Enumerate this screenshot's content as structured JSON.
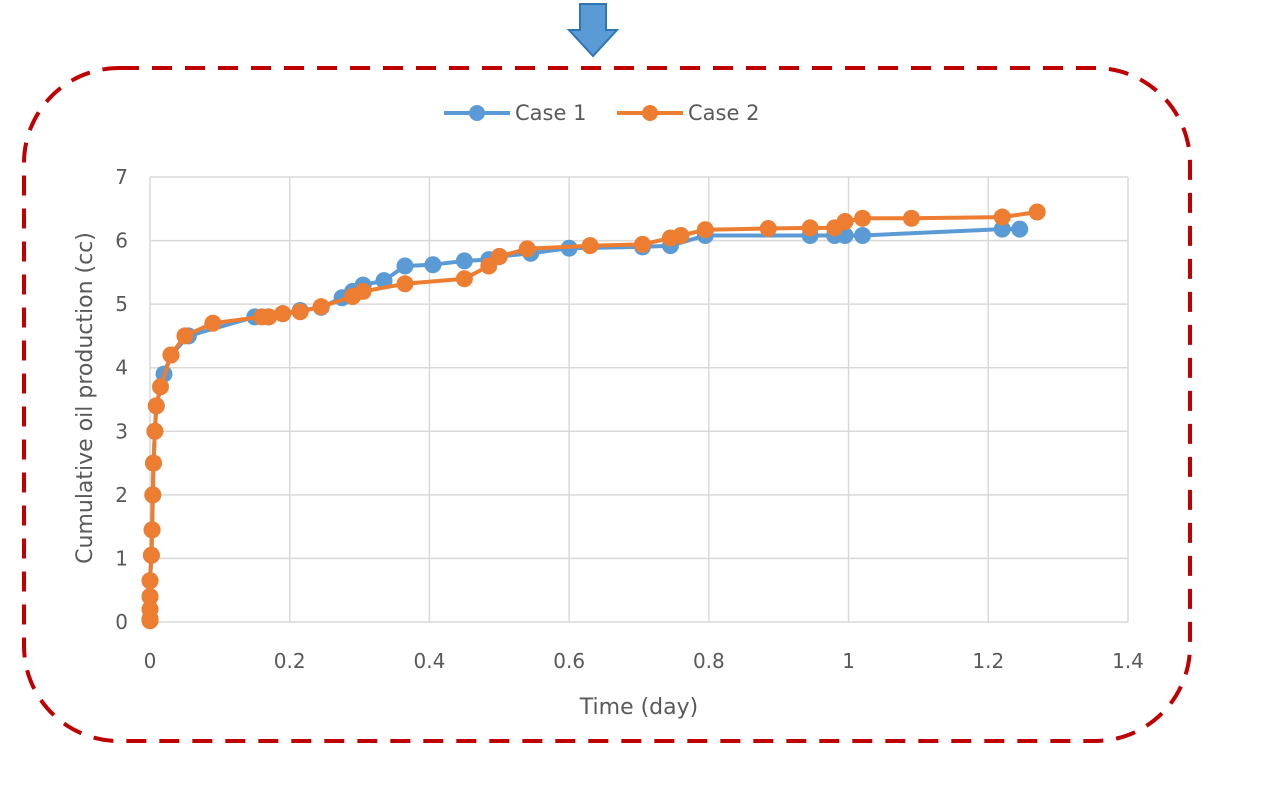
{
  "colors": {
    "case1": "#5B9BD5",
    "case2": "#ED7D31",
    "frame": "#C00000",
    "arrow_fill": "#5B9BD5",
    "arrow_stroke": "#2E75B6",
    "grid": "#D9D9D9",
    "text": "#595959"
  },
  "chart_data": {
    "type": "line",
    "title": "",
    "xlabel": "Time (day)",
    "ylabel": "Cumulative oil production (cc)",
    "xlim": [
      0,
      1.4
    ],
    "ylim": [
      0,
      7
    ],
    "xticks": [
      0,
      0.2,
      0.4,
      0.6,
      0.8,
      1,
      1.2,
      1.4
    ],
    "xtick_labels": [
      "0",
      "0.2",
      "0.4",
      "0.6",
      "0.8",
      "1",
      "1.2",
      "1.4"
    ],
    "yticks": [
      0,
      1,
      2,
      3,
      4,
      5,
      6,
      7
    ],
    "ytick_labels": [
      "0",
      "1",
      "2",
      "3",
      "4",
      "5",
      "6",
      "7"
    ],
    "grid": true,
    "legend_position": "top-center",
    "series": [
      {
        "name": "Case 1",
        "x": [
          0,
          0,
          0,
          0,
          0.002,
          0.003,
          0.004,
          0.005,
          0.007,
          0.009,
          0.02,
          0.03,
          0.055,
          0.15,
          0.17,
          0.19,
          0.215,
          0.245,
          0.275,
          0.29,
          0.305,
          0.335,
          0.365,
          0.405,
          0.45,
          0.485,
          0.5,
          0.545,
          0.6,
          0.705,
          0.745,
          0.795,
          0.945,
          0.98,
          0.995,
          1.02,
          1.22,
          1.245
        ],
        "y": [
          0.05,
          0.2,
          0.4,
          0.65,
          1.05,
          1.45,
          2.0,
          2.5,
          3.0,
          3.4,
          3.9,
          4.2,
          4.5,
          4.8,
          4.8,
          4.85,
          4.9,
          4.95,
          5.1,
          5.2,
          5.3,
          5.37,
          5.6,
          5.62,
          5.68,
          5.7,
          5.75,
          5.8,
          5.88,
          5.9,
          5.92,
          6.08,
          6.08,
          6.08,
          6.08,
          6.08,
          6.18,
          6.18
        ]
      },
      {
        "name": "Case 2",
        "x": [
          0,
          0,
          0,
          0,
          0,
          0.002,
          0.003,
          0.004,
          0.005,
          0.007,
          0.009,
          0.015,
          0.03,
          0.05,
          0.09,
          0.16,
          0.17,
          0.19,
          0.215,
          0.245,
          0.29,
          0.305,
          0.365,
          0.45,
          0.485,
          0.5,
          0.54,
          0.63,
          0.705,
          0.745,
          0.76,
          0.795,
          0.885,
          0.945,
          0.98,
          0.995,
          1.02,
          1.09,
          1.22,
          1.27
        ],
        "y": [
          0.02,
          0.05,
          0.2,
          0.4,
          0.65,
          1.05,
          1.45,
          2.0,
          2.5,
          3.0,
          3.4,
          3.7,
          4.2,
          4.5,
          4.7,
          4.8,
          4.8,
          4.85,
          4.88,
          4.96,
          5.12,
          5.2,
          5.32,
          5.4,
          5.6,
          5.75,
          5.87,
          5.92,
          5.94,
          6.04,
          6.08,
          6.17,
          6.19,
          6.2,
          6.2,
          6.3,
          6.35,
          6.35,
          6.37,
          6.45
        ]
      }
    ]
  }
}
